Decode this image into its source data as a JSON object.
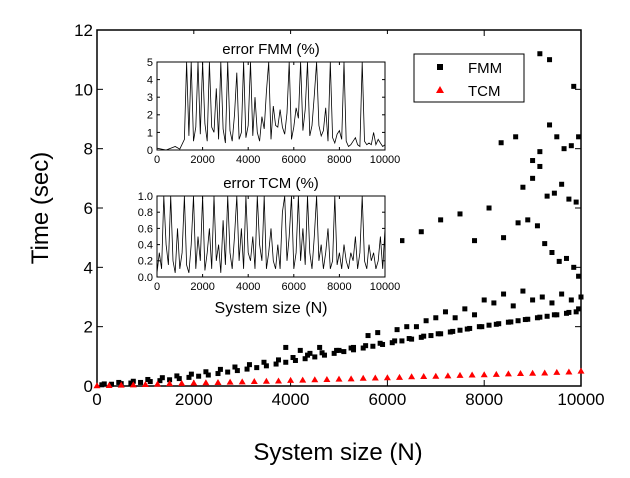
{
  "chart_data": [
    {
      "id": "main",
      "type": "scatter",
      "xlabel": "System size (N)",
      "ylabel": "Time (sec)",
      "xlim": [
        0,
        10000
      ],
      "ylim": [
        0,
        12
      ],
      "xticks": [
        0,
        2000,
        4000,
        6000,
        8000,
        10000
      ],
      "xtick_labels": [
        "0",
        "2000",
        "4000",
        "6000",
        "8000",
        "10000"
      ],
      "yticks": [
        0,
        2,
        4,
        6,
        8,
        10,
        12
      ],
      "ytick_labels": [
        "0",
        "2",
        "4",
        "6",
        "8",
        "10",
        "12"
      ],
      "legend": {
        "position": "top-right"
      },
      "series": [
        {
          "name": "FMM",
          "marker": "square",
          "color": "#000000",
          "x": [
            100,
            300,
            500,
            700,
            900,
            1100,
            1300,
            1500,
            1700,
            1900,
            2100,
            2300,
            2500,
            2700,
            2900,
            3100,
            3300,
            3500,
            3700,
            3900,
            4100,
            4300,
            4500,
            4700,
            4900,
            5100,
            5300,
            5500,
            5700,
            5900,
            6100,
            6300,
            6500,
            6700,
            6900,
            7100,
            7300,
            7500,
            7700,
            7900,
            8100,
            8300,
            8500,
            8700,
            8900,
            9100,
            9300,
            9500,
            9700,
            9900,
            150,
            450,
            750,
            1050,
            1350,
            1650,
            1950,
            2250,
            2550,
            2850,
            3150,
            3450,
            3750,
            4050,
            4350,
            4650,
            4950,
            5250,
            5550,
            5850,
            6150,
            6450,
            6750,
            7050,
            7350,
            7650,
            7950,
            8250,
            8550,
            8850,
            9150,
            9450,
            9750,
            9950,
            3900,
            4200,
            4400,
            4600,
            5000,
            5300,
            5600,
            5800,
            6200,
            6400,
            6600,
            6800,
            7000,
            7200,
            7400,
            7600,
            7800,
            8000,
            8200,
            8400,
            8600,
            8800,
            9000,
            9200,
            9400,
            9600,
            9800,
            10000,
            6300,
            6700,
            7100,
            7500,
            7800,
            8100,
            8400,
            8700,
            8900,
            9100,
            9250,
            9400,
            9550,
            9700,
            9850,
            9950,
            8800,
            9000,
            9150,
            9300,
            9450,
            9600,
            9750,
            9900,
            8350,
            8650,
            9000,
            9150,
            9350,
            9500,
            9650,
            9800,
            9950,
            9150,
            9350,
            9850
          ],
          "y": [
            0.04,
            0.06,
            0.08,
            0.1,
            0.12,
            0.15,
            0.18,
            0.21,
            0.25,
            0.29,
            0.33,
            0.37,
            0.42,
            0.47,
            0.52,
            0.57,
            0.62,
            0.68,
            0.74,
            0.8,
            0.86,
            0.92,
            0.98,
            1.04,
            1.1,
            1.16,
            1.22,
            1.28,
            1.34,
            1.4,
            1.46,
            1.52,
            1.58,
            1.64,
            1.7,
            1.76,
            1.82,
            1.88,
            1.94,
            2.0,
            2.05,
            2.1,
            2.15,
            2.2,
            2.25,
            2.3,
            2.35,
            2.4,
            2.45,
            2.5,
            0.07,
            0.12,
            0.16,
            0.22,
            0.28,
            0.34,
            0.4,
            0.48,
            0.56,
            0.64,
            0.72,
            0.8,
            0.88,
            0.96,
            1.04,
            1.12,
            1.2,
            1.28,
            1.36,
            1.44,
            1.52,
            1.6,
            1.68,
            1.76,
            1.84,
            1.92,
            2.0,
            2.08,
            2.16,
            2.24,
            2.32,
            2.4,
            2.48,
            2.6,
            1.3,
            1.2,
            1.1,
            1.3,
            1.2,
            1.3,
            1.7,
            1.8,
            1.9,
            2.0,
            2.0,
            2.2,
            2.3,
            2.5,
            2.3,
            2.6,
            2.4,
            2.9,
            2.8,
            3.1,
            2.7,
            3.2,
            2.9,
            3.0,
            2.8,
            3.1,
            2.9,
            3.0,
            4.9,
            5.2,
            5.6,
            5.8,
            4.9,
            6.0,
            5.0,
            5.5,
            5.6,
            5.4,
            4.8,
            4.5,
            4.2,
            4.3,
            4.0,
            3.7,
            6.7,
            7.0,
            7.4,
            6.4,
            6.5,
            6.8,
            6.3,
            6.2,
            8.2,
            8.4,
            7.6,
            7.9,
            8.8,
            8.4,
            8.0,
            8.1,
            8.4,
            11.2,
            11.0,
            10.1
          ]
        },
        {
          "name": "TCM",
          "marker": "triangle",
          "color": "#ff0000",
          "x": [
            0,
            250,
            500,
            750,
            1000,
            1250,
            1500,
            1750,
            2000,
            2250,
            2500,
            2750,
            3000,
            3250,
            3500,
            3750,
            4000,
            4250,
            4500,
            4750,
            5000,
            5250,
            5500,
            5750,
            6000,
            6250,
            6500,
            6750,
            7000,
            7250,
            7500,
            7750,
            8000,
            8250,
            8500,
            8750,
            9000,
            9250,
            9500,
            9750,
            10000
          ],
          "y": [
            0.01,
            0.015,
            0.03,
            0.04,
            0.05,
            0.065,
            0.08,
            0.09,
            0.1,
            0.11,
            0.12,
            0.13,
            0.14,
            0.15,
            0.16,
            0.17,
            0.19,
            0.2,
            0.21,
            0.22,
            0.23,
            0.24,
            0.26,
            0.27,
            0.28,
            0.29,
            0.31,
            0.32,
            0.33,
            0.34,
            0.36,
            0.37,
            0.38,
            0.39,
            0.41,
            0.42,
            0.43,
            0.44,
            0.46,
            0.47,
            0.5
          ]
        }
      ]
    },
    {
      "id": "inset_fmm",
      "type": "line",
      "title": "error FMM (%)",
      "xlim": [
        0,
        10000
      ],
      "ylim": [
        0,
        5
      ],
      "xticks": [
        0,
        2000,
        4000,
        6000,
        8000,
        10000
      ],
      "xtick_labels": [
        "0",
        "2000",
        "4000",
        "6000",
        "8000",
        "10000"
      ],
      "yticks": [
        0,
        1,
        2,
        3,
        4,
        5
      ],
      "ytick_labels": [
        "0",
        "1",
        "2",
        "3",
        "4",
        "5"
      ],
      "x": [
        0,
        200,
        400,
        600,
        800,
        1000,
        1200,
        1300,
        1400,
        1500,
        1600,
        1700,
        1800,
        1900,
        2000,
        2100,
        2200,
        2300,
        2400,
        2500,
        2600,
        2700,
        2800,
        2900,
        3000,
        3100,
        3200,
        3300,
        3400,
        3500,
        3600,
        3700,
        3800,
        3900,
        4000,
        4100,
        4200,
        4300,
        4400,
        4500,
        4600,
        4700,
        4800,
        4900,
        5000,
        5100,
        5200,
        5300,
        5400,
        5500,
        5600,
        5700,
        5800,
        5900,
        6000,
        6100,
        6200,
        6300,
        6400,
        6500,
        6600,
        6700,
        6800,
        6900,
        7000,
        7100,
        7200,
        7300,
        7400,
        7500,
        7600,
        7700,
        7800,
        7900,
        8000,
        8100,
        8200,
        8300,
        8400,
        8500,
        8600,
        8700,
        8800,
        8900,
        9000,
        9100,
        9200,
        9300,
        9400,
        9500,
        9600,
        9700,
        9800,
        9900,
        10000
      ],
      "y": [
        0.1,
        0.05,
        0.0,
        0.1,
        0.2,
        0.05,
        0.6,
        5,
        0.8,
        5,
        0.5,
        1.3,
        5,
        0.9,
        5,
        1.5,
        0.5,
        5,
        1.3,
        1.0,
        3.5,
        0.6,
        5,
        1.2,
        0.4,
        5,
        1.1,
        0.5,
        2.0,
        4.4,
        0.6,
        1.0,
        5,
        0.7,
        1.4,
        5,
        0.8,
        3.0,
        1.0,
        0.5,
        1.9,
        1.2,
        3.3,
        5,
        0.6,
        2.5,
        1.4,
        1.3,
        2.3,
        1.3,
        0.9,
        2.1,
        5,
        0.6,
        1.3,
        2.4,
        1.8,
        5,
        1.1,
        2.3,
        5,
        0.8,
        1.4,
        3.1,
        5,
        1.4,
        0.8,
        1.1,
        2.4,
        0.5,
        5,
        0.7,
        0.4,
        0.9,
        1.1,
        0.6,
        5,
        0.5,
        0.2,
        0.3,
        0.5,
        0.7,
        0.3,
        0.2,
        5,
        0.5,
        0.3,
        0.4,
        0.3,
        1.0,
        0.3,
        0.6,
        0.4,
        0.2,
        0.3
      ]
    },
    {
      "id": "inset_tcm",
      "type": "line",
      "title": "error TCM (%)",
      "xlabel": "System size (N)",
      "xlim": [
        0,
        10000
      ],
      "ylim": [
        0,
        1.0
      ],
      "xticks": [
        0,
        2000,
        4000,
        6000,
        8000,
        10000
      ],
      "xtick_labels": [
        "0",
        "2000",
        "4000",
        "6000",
        "8000",
        "10000"
      ],
      "yticks": [
        0,
        0.2,
        0.4,
        0.6,
        0.8,
        1.0
      ],
      "ytick_labels": [
        "0.0",
        "0.2",
        "0.4",
        "0.6",
        "0.8",
        "1.0"
      ],
      "x": [
        0,
        100,
        200,
        300,
        400,
        500,
        600,
        700,
        800,
        900,
        1000,
        1100,
        1200,
        1300,
        1400,
        1500,
        1600,
        1700,
        1800,
        1900,
        2000,
        2100,
        2200,
        2300,
        2400,
        2500,
        2600,
        2700,
        2800,
        2900,
        3000,
        3100,
        3200,
        3300,
        3400,
        3500,
        3600,
        3700,
        3800,
        3900,
        4000,
        4100,
        4200,
        4300,
        4400,
        4500,
        4600,
        4700,
        4800,
        4900,
        5000,
        5100,
        5200,
        5300,
        5400,
        5500,
        5600,
        5700,
        5800,
        5900,
        6000,
        6100,
        6200,
        6300,
        6400,
        6500,
        6600,
        6700,
        6800,
        6900,
        7000,
        7100,
        7200,
        7300,
        7400,
        7500,
        7600,
        7700,
        7800,
        7900,
        8000,
        8100,
        8200,
        8300,
        8400,
        8500,
        8600,
        8700,
        8800,
        8900,
        9000,
        9100,
        9200,
        9300,
        9400,
        9500,
        9600,
        9700,
        9800,
        9900,
        10000
      ],
      "y": [
        0.05,
        0.3,
        0.1,
        1.0,
        0.4,
        0.15,
        1.0,
        0.2,
        0.05,
        0.6,
        0.1,
        0.3,
        1.0,
        0.15,
        0.05,
        0.4,
        1.0,
        0.1,
        0.5,
        0.2,
        1.0,
        0.08,
        0.3,
        0.6,
        0.1,
        1.0,
        0.2,
        0.4,
        0.05,
        0.7,
        0.15,
        1.0,
        0.3,
        0.1,
        0.5,
        1.0,
        0.2,
        0.6,
        0.1,
        1.0,
        0.3,
        0.2,
        0.5,
        0.1,
        1.0,
        0.4,
        0.2,
        1.0,
        0.1,
        0.3,
        0.6,
        0.2,
        0.1,
        0.4,
        0.1,
        0.8,
        1.0,
        0.2,
        0.5,
        1.0,
        0.1,
        0.3,
        1.0,
        0.2,
        0.6,
        0.15,
        1.0,
        0.3,
        0.1,
        0.5,
        1.0,
        0.2,
        0.4,
        0.1,
        0.3,
        0.6,
        0.1,
        0.2,
        1.0,
        0.15,
        0.3,
        0.1,
        0.4,
        0.2,
        0.1,
        0.3,
        0.2,
        0.5,
        0.1,
        0.3,
        1.0,
        0.2,
        0.1,
        0.4,
        0.2,
        0.3,
        0.1,
        0.2,
        0.5,
        0.1,
        0.6
      ]
    }
  ]
}
